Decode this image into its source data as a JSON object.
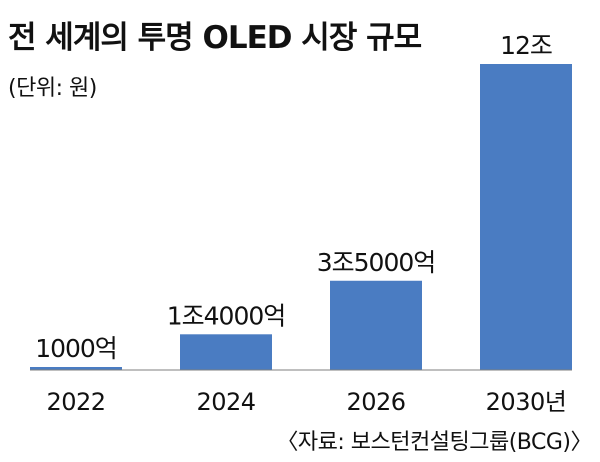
{
  "title": "전 세계의 투명 OLED 시장 규모",
  "unit_note": "(단위: 원)",
  "source": "〈자료: 보스턴컨설팅그룹(BCG)〉",
  "colors": {
    "bar": "#4a7cc2",
    "baseline": "#7f7f7f"
  },
  "chart_data": {
    "type": "bar",
    "title": "전 세계의 투명 OLED 시장 규모",
    "xlabel": "",
    "ylabel": "",
    "categories": [
      "2022",
      "2024",
      "2026",
      "2030년"
    ],
    "values": [
      0.1,
      1.4,
      3.5,
      12
    ],
    "value_unit": "조 원",
    "data_labels": [
      "1000억",
      "1조4000억",
      "3조5000억",
      "12조"
    ],
    "ylim": [
      0,
      12
    ],
    "grid": false,
    "legend": "none"
  }
}
